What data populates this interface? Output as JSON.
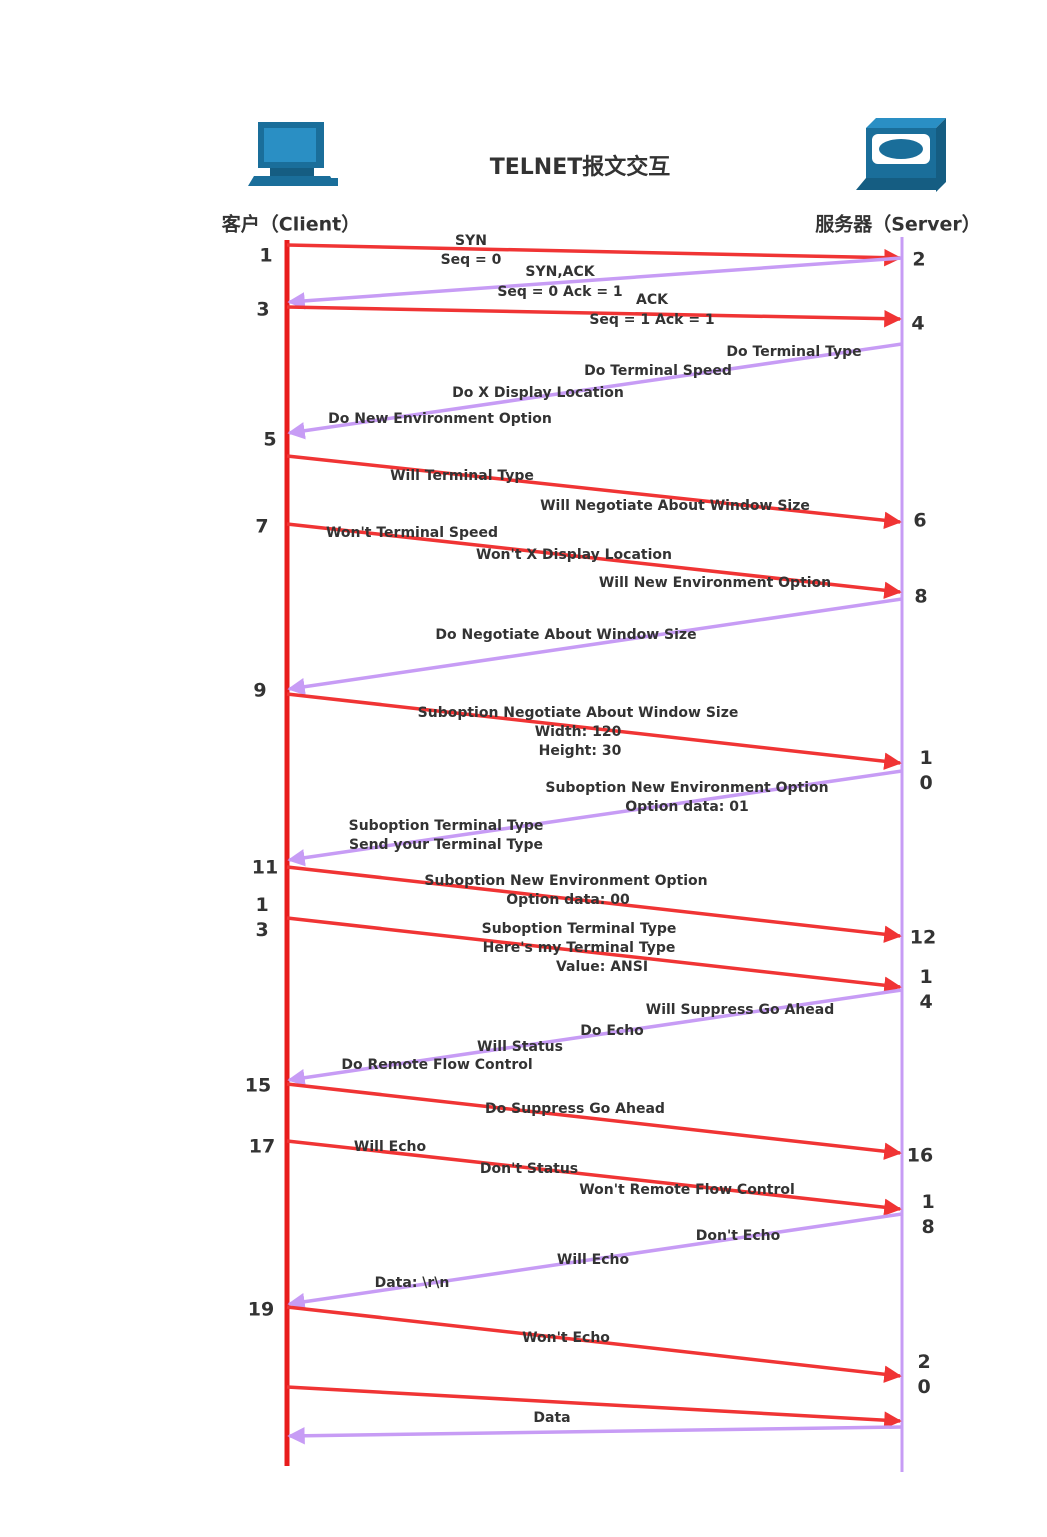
{
  "title": "TELNET报文交互",
  "participants": {
    "client": "客户（Client）",
    "server": "服务器（Server）"
  },
  "steps": [
    "1",
    "2",
    "3",
    "4",
    "5",
    "6",
    "7",
    "8",
    "9",
    "10",
    "11",
    "13",
    "12",
    "14",
    "15",
    "17",
    "16",
    "18",
    "19",
    "20"
  ],
  "messages": [
    {
      "lines": [
        "SYN",
        "Seq = 0"
      ]
    },
    {
      "lines": [
        "SYN,ACK",
        "Seq = 0 Ack = 1"
      ]
    },
    {
      "lines": [
        "ACK",
        "Seq = 1 Ack = 1"
      ]
    },
    {
      "lines": [
        "Do Terminal Type",
        "Do Terminal Speed",
        "Do X Display Location",
        "Do New Environment Option"
      ]
    },
    {
      "lines": [
        "Will Terminal Type",
        "Will Negotiate About Window Size"
      ]
    },
    {
      "lines": [
        "Won't Terminal Speed",
        "Won't X Display Location",
        "Will New Environment Option"
      ]
    },
    {
      "lines": [
        "Do Negotiate About Window Size"
      ]
    },
    {
      "lines": [
        "Suboption Negotiate About Window Size",
        "Width: 120",
        "Height: 30"
      ]
    },
    {
      "lines": [
        "Suboption New Environment Option",
        "Option data: 01",
        "Suboption Terminal Type",
        "Send your Terminal Type"
      ]
    },
    {
      "lines": [
        "Suboption New Environment Option",
        "Option data: 00"
      ]
    },
    {
      "lines": [
        "Suboption Terminal Type",
        "Here's my Terminal Type",
        "Value: ANSI"
      ]
    },
    {
      "lines": [
        "Will Suppress Go Ahead",
        "Do Echo",
        "Will Status",
        "Do Remote Flow Control"
      ]
    },
    {
      "lines": [
        "Do Suppress Go Ahead"
      ]
    },
    {
      "lines": [
        "Will Echo",
        "Don't Status",
        "Won't Remote Flow Control"
      ]
    },
    {
      "lines": [
        "Don't Echo",
        "Will Echo",
        "Data: \\r\\n"
      ]
    },
    {
      "lines": [
        "Won't Echo"
      ]
    },
    {
      "lines": [
        "Data"
      ]
    },
    {
      "lines": []
    }
  ]
}
